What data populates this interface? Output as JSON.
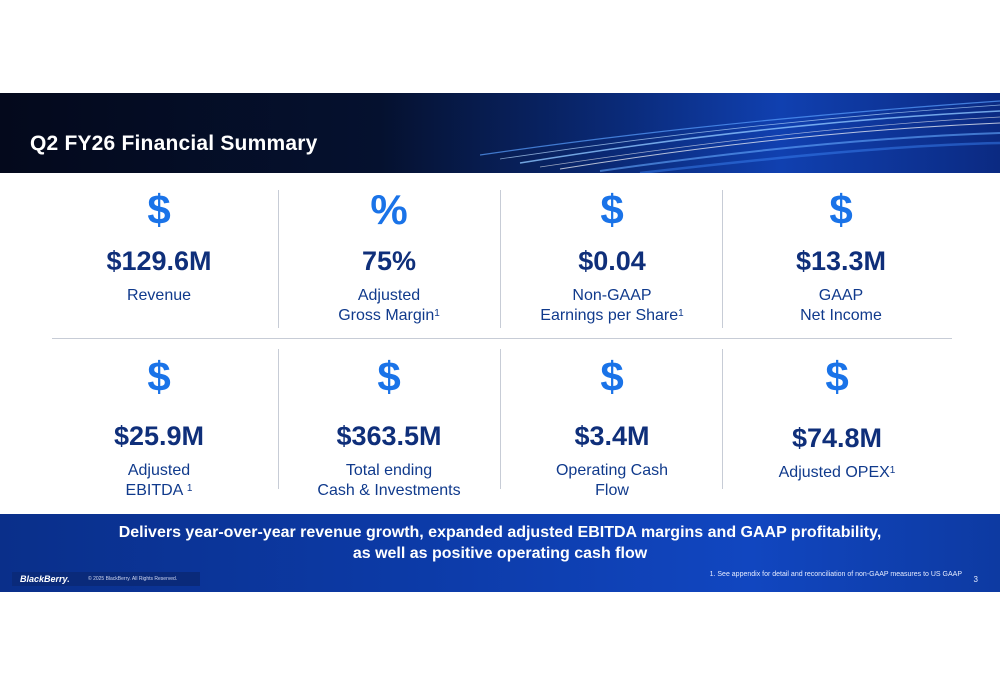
{
  "slide": {
    "title": "Q2 FY26 Financial Summary"
  },
  "metrics": [
    {
      "icon": "$",
      "icon_name": "dollar-icon",
      "value": "$129.6M",
      "label": "Revenue",
      "sup": ""
    },
    {
      "icon": "%",
      "icon_name": "percent-icon",
      "value": "75%",
      "label": "Adjusted\nGross Margin",
      "sup": "1"
    },
    {
      "icon": "$",
      "icon_name": "dollar-icon",
      "value": "$0.04",
      "label": "Non-GAAP\nEarnings per Share",
      "sup": "1"
    },
    {
      "icon": "$",
      "icon_name": "dollar-icon",
      "value": "$13.3M",
      "label": "GAAP\nNet Income",
      "sup": ""
    },
    {
      "icon": "$",
      "icon_name": "dollar-icon",
      "value": "$25.9M",
      "label": "Adjusted\nEBITDA ",
      "sup": "1"
    },
    {
      "icon": "$",
      "icon_name": "dollar-icon",
      "value": "$363.5M",
      "label": "Total ending\nCash & Investments",
      "sup": ""
    },
    {
      "icon": "$",
      "icon_name": "dollar-icon",
      "value": "$3.4M",
      "label": "Operating Cash\nFlow",
      "sup": ""
    },
    {
      "icon": "$",
      "icon_name": "dollar-icon",
      "value": "$74.8M",
      "label": "Adjusted OPEX",
      "sup": "1"
    }
  ],
  "footer": {
    "message": "Delivers year-over-year revenue growth, expanded adjusted EBITDA margins and GAAP profitability,\nas well as positive operating cash flow",
    "logo": "BlackBerry.",
    "copyright": "© 2025 BlackBerry. All Rights Reserved.",
    "footnote": "1. See appendix for detail and reconciliation of non-GAAP measures to US GAAP",
    "page_number": "3"
  },
  "colors": {
    "accent_icon": "#1a73e8",
    "value_text": "#0f2f7a",
    "banner_dark": "#04091c",
    "footer_blue": "#0c3aa6"
  }
}
